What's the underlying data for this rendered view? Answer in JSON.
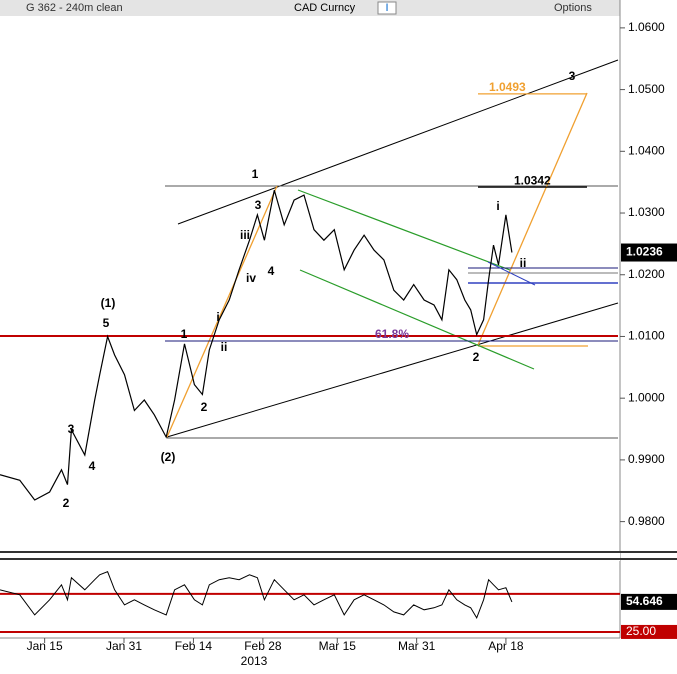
{
  "header": {
    "ticker": "G 362 - 240m clean",
    "security": "CAD Curncy",
    "info": "I",
    "options": "Options"
  },
  "chart_data": {
    "type": "line",
    "x": [
      6.0,
      10.0,
      13.0,
      16.0,
      18.4,
      19.6,
      20.4,
      23.1,
      25.1,
      26.1,
      27.7,
      29.1,
      31.1,
      33.1,
      35.1,
      37.1,
      39.5,
      41.2,
      43.2,
      45.2,
      46.8,
      48.2,
      50.2,
      52.2,
      54.2,
      56.3,
      57.9,
      59.3,
      61.3,
      63.3,
      65.3,
      67.3,
      69.3,
      71.3,
      73.4,
      75.4,
      77.4,
      79.4,
      81.4,
      83.4,
      85.4,
      87.4,
      89.4,
      91.5,
      93.5,
      95.1,
      96.5,
      98.1,
      99.7,
      100.9,
      102.1,
      103.5,
      104.5,
      105.5,
      106.5,
      108.0,
      109.2
    ],
    "series": [
      {
        "name": "CAD Curncy",
        "color": "#000000",
        "values": [
          0.9876,
          0.9867,
          0.9835,
          0.9848,
          0.9884,
          0.986,
          0.9949,
          0.9908,
          0.9997,
          1.0038,
          1.01,
          1.007,
          1.0038,
          0.998,
          0.9997,
          0.9973,
          0.9937,
          0.9997,
          1.0088,
          1.0022,
          1.0006,
          1.0078,
          1.0127,
          1.0159,
          1.0208,
          1.0256,
          1.0297,
          1.0256,
          1.0337,
          1.0281,
          1.0321,
          1.0329,
          1.0273,
          1.0256,
          1.0273,
          1.0208,
          1.024,
          1.0264,
          1.024,
          1.0224,
          1.0175,
          1.0159,
          1.0184,
          1.0159,
          1.0151,
          1.0127,
          1.0208,
          1.0192,
          1.0159,
          1.0143,
          1.0103,
          1.0127,
          1.0192,
          1.0248,
          1.0216,
          1.0297,
          1.0236
        ]
      }
    ],
    "last_value": {
      "value": 1.0236,
      "label": "1.0236"
    },
    "xlim": [
      6,
      131
    ],
    "xticks": [
      {
        "value": 15,
        "label": "Jan 15"
      },
      {
        "value": 31,
        "label": "Jan 31"
      },
      {
        "value": 45,
        "label": "Feb 14"
      },
      {
        "value": 59,
        "label": "Feb 28"
      },
      {
        "value": 74,
        "label": "Mar 15"
      },
      {
        "value": 90,
        "label": "Mar 31"
      },
      {
        "value": 108,
        "label": "Apr 18"
      }
    ],
    "year_label": "2013",
    "ylim": [
      0.9754,
      1.0616
    ],
    "yticks": [
      {
        "value": 1.06,
        "label": "1.0600"
      },
      {
        "value": 1.05,
        "label": "1.0500"
      },
      {
        "value": 1.04,
        "label": "1.0400"
      },
      {
        "value": 1.03,
        "label": "1.0300"
      },
      {
        "value": 1.02,
        "label": "1.0200"
      },
      {
        "value": 1.01,
        "label": "1.0100"
      },
      {
        "value": 1.0,
        "label": "1.0000"
      },
      {
        "value": 0.99,
        "label": "0.9900"
      },
      {
        "value": 0.98,
        "label": "0.9800"
      }
    ],
    "levels": [
      {
        "value": 1.0342,
        "label": "1.0342",
        "color": "#000000"
      },
      {
        "value": 1.0493,
        "label": "1.0493",
        "color": "#f0a030"
      }
    ],
    "annotations": [
      "1",
      "3",
      "iii",
      "iv",
      "4",
      "(1)",
      "5",
      "3",
      "4",
      "2",
      "(2)",
      "1",
      "i",
      "ii",
      "2",
      "61.8%",
      "2",
      "i",
      "ii",
      "3"
    ],
    "rsi": {
      "values": [
        66.6,
        61.6,
        41.8,
        56.7,
        71.5,
        56.7,
        78.5,
        66.6,
        76.5,
        81.4,
        84.4,
        66.6,
        51.7,
        56.7,
        51.7,
        46.8,
        41.8,
        66.6,
        71.5,
        56.7,
        51.7,
        71.5,
        76.5,
        78.5,
        76.5,
        81.4,
        78.5,
        56.7,
        76.5,
        66.6,
        56.7,
        61.6,
        51.7,
        56.7,
        61.6,
        41.8,
        56.7,
        61.6,
        56.7,
        51.7,
        44.8,
        41.8,
        51.7,
        46.8,
        48.8,
        51.7,
        66.6,
        56.7,
        51.7,
        48.8,
        38.9,
        56.7,
        76.5,
        71.5,
        66.6,
        68.6,
        54.646
      ],
      "color": "#000000",
      "ylim": [
        21,
        94
      ],
      "last_value": {
        "value": 54.646,
        "label": "54.646"
      },
      "bands": [
        {
          "value": 62.6,
          "color": "#c00000"
        },
        {
          "value": 25,
          "label": "25.00",
          "color": "#c00000"
        }
      ]
    }
  }
}
